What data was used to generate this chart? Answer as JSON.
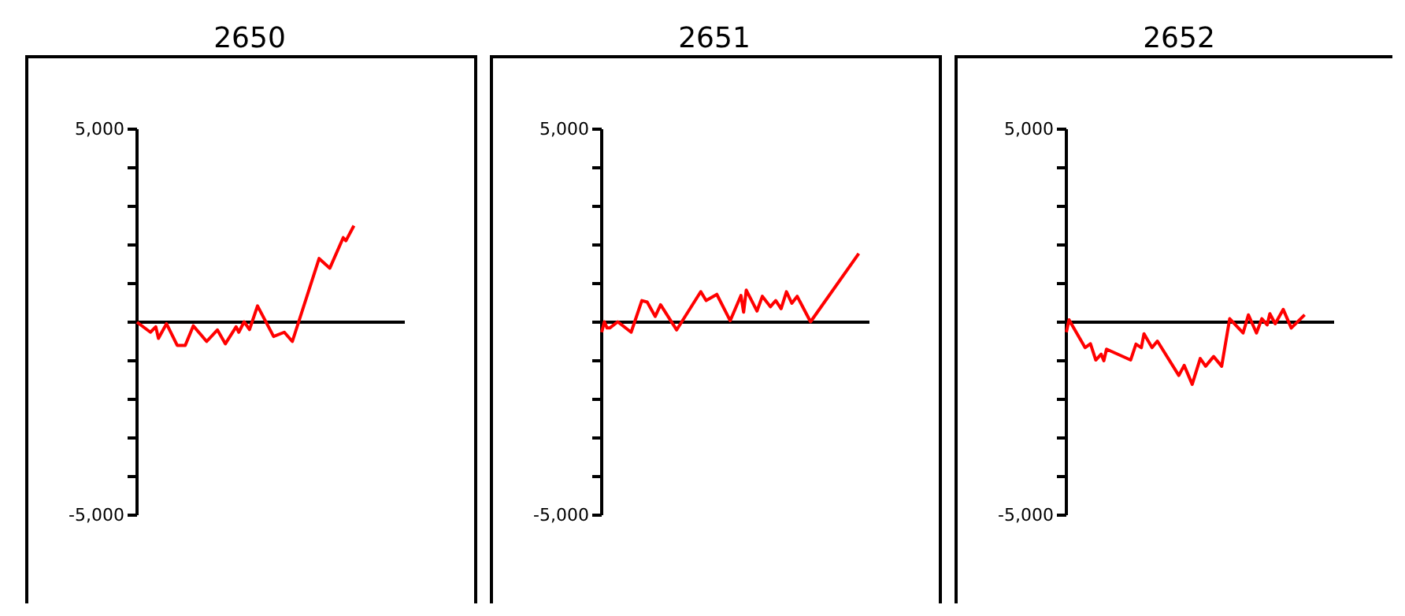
{
  "chart_data": [
    {
      "type": "line",
      "title": "2650",
      "color": "#ff0000",
      "ylim": [
        -5000,
        5000
      ],
      "tick_labels": "y",
      "marker": "none",
      "line_style": "solid",
      "yticks": [
        {
          "value": -5000,
          "label": "-5,000"
        },
        {
          "value": -4000,
          "label": null
        },
        {
          "value": -3000,
          "label": null
        },
        {
          "value": -2000,
          "label": null
        },
        {
          "value": -1000,
          "label": null
        },
        {
          "value": 0,
          "label": null
        },
        {
          "value": 1000,
          "label": null
        },
        {
          "value": 2000,
          "label": null
        },
        {
          "value": 3000,
          "label": null
        },
        {
          "value": 4000,
          "label": null
        },
        {
          "value": 5000,
          "label": "5,000"
        }
      ],
      "categories": [
        null,
        null,
        null,
        null,
        null,
        null,
        null,
        null,
        null,
        null,
        null,
        null,
        null,
        null,
        null,
        null,
        null,
        null,
        null,
        null,
        null,
        null,
        null,
        null,
        null,
        null,
        null,
        null,
        null,
        null,
        null,
        null,
        null,
        null,
        null,
        null,
        null,
        null,
        null,
        null,
        null,
        null,
        null,
        null,
        null,
        null,
        null,
        null,
        null,
        null,
        null,
        null,
        null,
        null,
        null,
        null,
        null,
        null,
        null,
        null,
        null,
        null,
        null,
        null,
        null,
        null,
        null,
        null,
        null,
        null,
        null,
        null,
        null,
        null,
        null,
        null,
        null,
        null,
        null,
        null,
        null,
        null,
        null,
        null,
        null,
        null,
        null,
        null,
        null,
        null,
        null,
        null,
        null,
        null,
        null,
        null,
        null,
        null,
        null,
        null,
        null
      ],
      "values": [
        0,
        null,
        null,
        null,
        null,
        -260,
        null,
        -120,
        -420,
        null,
        null,
        -40,
        null,
        null,
        null,
        -600,
        null,
        null,
        -600,
        null,
        null,
        -95,
        null,
        null,
        null,
        null,
        -500,
        null,
        null,
        null,
        -200,
        null,
        null,
        -560,
        null,
        null,
        null,
        -120,
        -260,
        null,
        10,
        null,
        -190,
        null,
        null,
        420,
        null,
        null,
        null,
        null,
        null,
        -370,
        null,
        null,
        null,
        -260,
        null,
        null,
        -500,
        null,
        null,
        null,
        null,
        null,
        null,
        null,
        null,
        null,
        1650,
        null,
        null,
        null,
        1400,
        null,
        null,
        null,
        null,
        2190,
        2110,
        null,
        null,
        2500,
        null,
        null,
        null,
        null,
        null,
        null,
        null,
        null,
        null,
        null,
        null,
        null,
        null,
        null,
        null,
        null,
        null,
        null,
        null
      ]
    },
    {
      "type": "line",
      "title": "2651",
      "color": "#ff0000",
      "ylim": [
        -5000,
        5000
      ],
      "tick_labels": "y",
      "marker": "none",
      "line_style": "solid",
      "yticks": [
        {
          "value": -5000,
          "label": "-5,000"
        },
        {
          "value": -4000,
          "label": null
        },
        {
          "value": -3000,
          "label": null
        },
        {
          "value": -2000,
          "label": null
        },
        {
          "value": -1000,
          "label": null
        },
        {
          "value": 0,
          "label": null
        },
        {
          "value": 1000,
          "label": null
        },
        {
          "value": 2000,
          "label": null
        },
        {
          "value": 3000,
          "label": null
        },
        {
          "value": 4000,
          "label": null
        },
        {
          "value": 5000,
          "label": "5,000"
        }
      ],
      "categories": [
        null,
        null,
        null,
        null,
        null,
        null,
        null,
        null,
        null,
        null,
        null,
        null,
        null,
        null,
        null,
        null,
        null,
        null,
        null,
        null,
        null,
        null,
        null,
        null,
        null,
        null,
        null,
        null,
        null,
        null,
        null,
        null,
        null,
        null,
        null,
        null,
        null,
        null,
        null,
        null,
        null,
        null,
        null,
        null,
        null,
        null,
        null,
        null,
        null,
        null,
        null,
        null,
        null,
        null,
        null,
        null,
        null,
        null,
        null,
        null,
        null,
        null,
        null,
        null,
        null,
        null,
        null,
        null,
        null,
        null,
        null,
        null,
        null,
        null,
        null,
        null,
        null,
        null,
        null,
        null,
        null,
        null,
        null,
        null,
        null,
        null,
        null,
        null,
        null,
        null,
        null,
        null,
        null,
        null,
        null,
        null,
        null,
        null,
        null,
        null,
        null
      ],
      "values": [
        -260,
        10,
        -150,
        -150,
        null,
        null,
        10,
        null,
        null,
        null,
        null,
        -260,
        null,
        null,
        null,
        560,
        null,
        520,
        null,
        null,
        150,
        null,
        450,
        null,
        null,
        null,
        null,
        null,
        -200,
        null,
        null,
        null,
        null,
        null,
        null,
        null,
        null,
        790,
        null,
        560,
        null,
        null,
        null,
        720,
        null,
        null,
        null,
        null,
        40,
        null,
        null,
        null,
        690,
        260,
        830,
        null,
        null,
        null,
        290,
        null,
        670,
        null,
        null,
        400,
        null,
        560,
        null,
        350,
        null,
        790,
        null,
        490,
        null,
        670,
        null,
        null,
        null,
        null,
        10,
        null,
        null,
        null,
        null,
        null,
        null,
        null,
        null,
        null,
        null,
        null,
        null,
        null,
        null,
        null,
        null,
        null,
        1780,
        null,
        null,
        null,
        null
      ]
    },
    {
      "type": "line",
      "title": "2652",
      "color": "#ff0000",
      "ylim": [
        -5000,
        5000
      ],
      "tick_labels": "y",
      "marker": "none",
      "line_style": "solid",
      "yticks": [
        {
          "value": -5000,
          "label": "-5,000"
        },
        {
          "value": -4000,
          "label": null
        },
        {
          "value": -3000,
          "label": null
        },
        {
          "value": -2000,
          "label": null
        },
        {
          "value": -1000,
          "label": null
        },
        {
          "value": 0,
          "label": null
        },
        {
          "value": 1000,
          "label": null
        },
        {
          "value": 2000,
          "label": null
        },
        {
          "value": 3000,
          "label": null
        },
        {
          "value": 4000,
          "label": null
        },
        {
          "value": 5000,
          "label": "5,000"
        }
      ],
      "categories": [
        null,
        null,
        null,
        null,
        null,
        null,
        null,
        null,
        null,
        null,
        null,
        null,
        null,
        null,
        null,
        null,
        null,
        null,
        null,
        null,
        null,
        null,
        null,
        null,
        null,
        null,
        null,
        null,
        null,
        null,
        null,
        null,
        null,
        null,
        null,
        null,
        null,
        null,
        null,
        null,
        null,
        null,
        null,
        null,
        null,
        null,
        null,
        null,
        null,
        null,
        null,
        null,
        null,
        null,
        null,
        null,
        null,
        null,
        null,
        null,
        null,
        null,
        null,
        null,
        null,
        null,
        null,
        null,
        null,
        null,
        null,
        null,
        null,
        null,
        null,
        null,
        null,
        null,
        null,
        null,
        null,
        null,
        null,
        null,
        null,
        null,
        null,
        null,
        null,
        null,
        null,
        null,
        null,
        null,
        null,
        null,
        null,
        null,
        null,
        null,
        null
      ],
      "values": [
        -260,
        60,
        null,
        null,
        null,
        null,
        null,
        -660,
        null,
        -560,
        null,
        -980,
        null,
        -830,
        -1000,
        -700,
        null,
        null,
        null,
        null,
        null,
        null,
        null,
        null,
        -980,
        null,
        -570,
        null,
        -660,
        -300,
        null,
        null,
        -660,
        null,
        -490,
        null,
        null,
        null,
        null,
        null,
        null,
        null,
        -1380,
        null,
        -1120,
        null,
        null,
        -1610,
        null,
        null,
        -940,
        null,
        -1140,
        null,
        null,
        -890,
        null,
        null,
        -1140,
        null,
        null,
        90,
        null,
        null,
        null,
        null,
        -280,
        null,
        190,
        null,
        null,
        -280,
        null,
        90,
        null,
        -70,
        220,
        null,
        -40,
        null,
        null,
        330,
        null,
        null,
        -150,
        null,
        null,
        null,
        null,
        190,
        null,
        null,
        null,
        null,
        null,
        null,
        null,
        null,
        null,
        null,
        null
      ]
    }
  ]
}
